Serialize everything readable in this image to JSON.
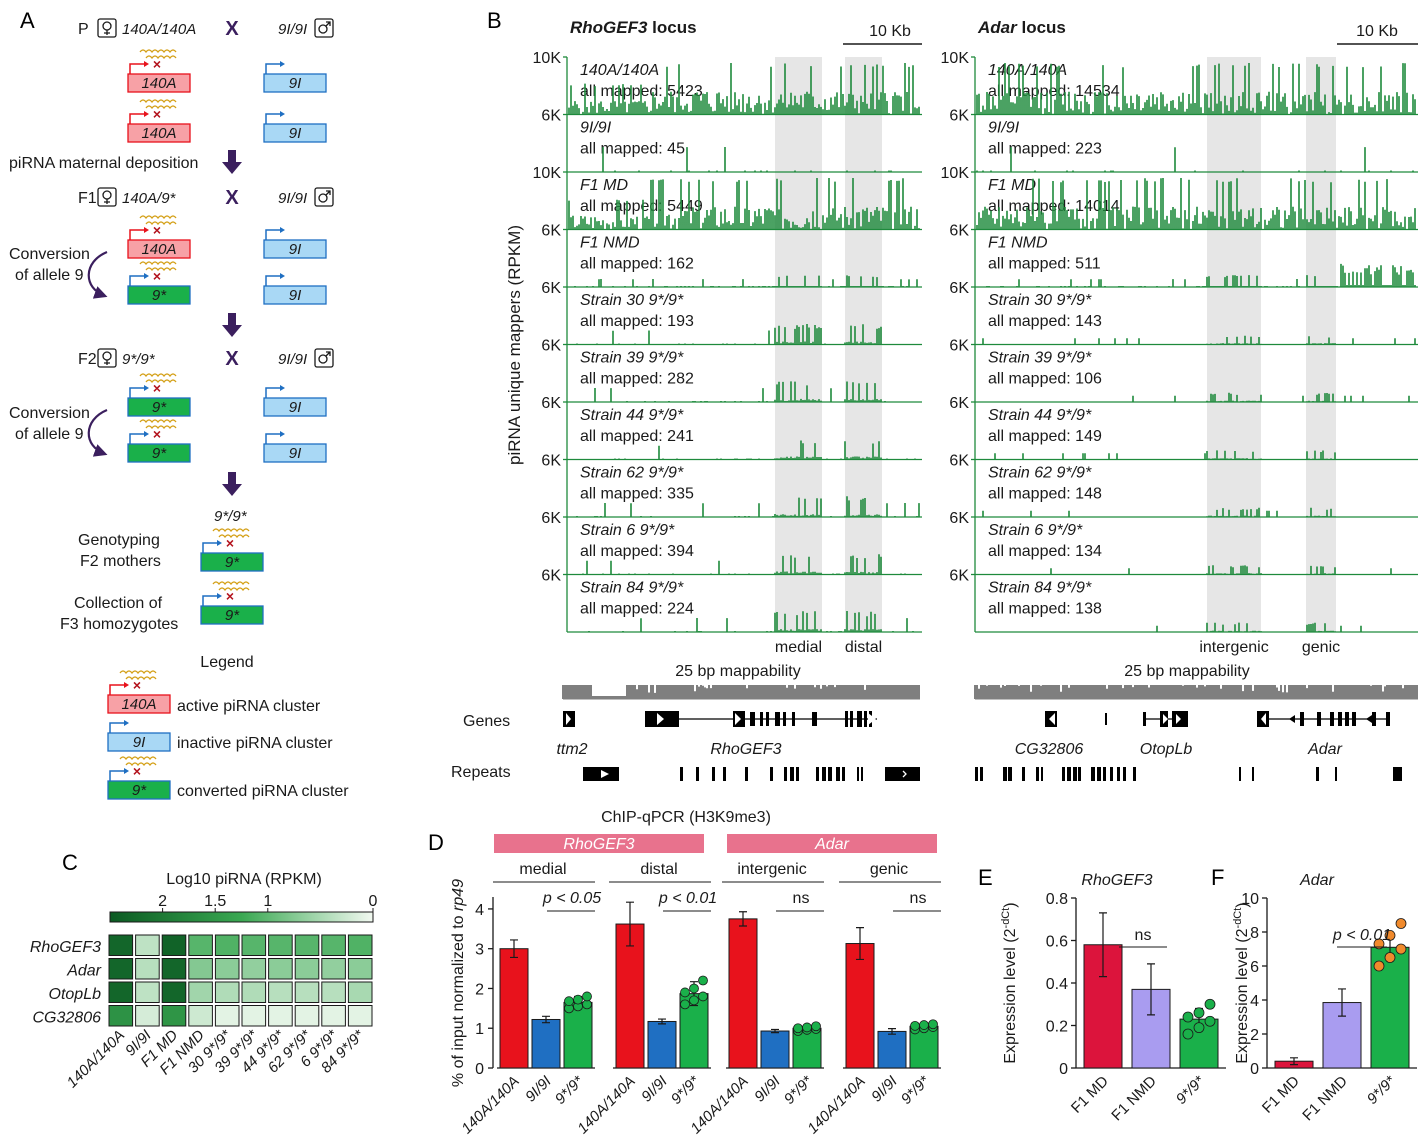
{
  "figure": {
    "panel_labels": [
      "A",
      "B",
      "C",
      "D",
      "E",
      "F"
    ],
    "colors": {
      "track": "#1e8a3c",
      "shade": "#e6e6e6",
      "red": "#e8121c",
      "blue": "#1f6fc2",
      "green": "#1ab04a",
      "crimson": "#dc143c",
      "lavender": "#a99cf0",
      "pink": "#e8728d",
      "purple": "#3b1f5e",
      "gold": "#d4a017"
    }
  },
  "panel_a": {
    "p_row": {
      "gen": "P",
      "female_geno": "140A/140A",
      "cross": "X",
      "male_geno": "9I/9I"
    },
    "f1_row": {
      "gen": "F1",
      "female_geno": "140A/9*",
      "cross": "X",
      "male_geno": "9I/9I"
    },
    "f2_row": {
      "gen": "F2",
      "female_geno": "9*/9*",
      "cross": "X",
      "male_geno": "9I/9I"
    },
    "box_labels": {
      "active": "140A",
      "inactive": "9I",
      "converted": "9*"
    },
    "deposition_text": "piRNA maternal deposition",
    "conversion_line1": "Conversion",
    "conversion_line2": "of allele 9",
    "final_geno": "9*/9*",
    "genotyping_line1": "Genotyping",
    "genotyping_line2": "F2 mothers",
    "collection_line1": "Collection of",
    "collection_line2": "F3 homozygotes",
    "legend_title": "Legend",
    "legend_active": "active piRNA cluster",
    "legend_inactive": "inactive piRNA cluster",
    "legend_converted": "converted piRNA cluster"
  },
  "panel_b": {
    "ylabel": "piRNA unique mappers (RPKM)",
    "scale_label": "10 Kb",
    "loci": [
      {
        "title": "RhoGEF3",
        "title_suffix": "locus",
        "regions": [
          "medial",
          "distal"
        ],
        "genes": [
          "ttm2",
          "RhoGEF3"
        ]
      },
      {
        "title": "Adar",
        "title_suffix": "locus",
        "regions": [
          "intergenic",
          "genic"
        ],
        "genes": [
          "CG32806",
          "OtopLb",
          "Adar"
        ]
      }
    ],
    "tracks": [
      {
        "name": "140A/140A",
        "ymax_label": "10K",
        "mapped_rho": "all mapped: 5423",
        "mapped_adar": "all mapped: 14534"
      },
      {
        "name": "9I/9I",
        "ymax_label": "6K",
        "mapped_rho": "all mapped: 45",
        "mapped_adar": "all mapped: 223"
      },
      {
        "name": "F1 MD",
        "ymax_label": "10K",
        "mapped_rho": "all mapped: 5449",
        "mapped_adar": "all mapped: 14014"
      },
      {
        "name": "F1 NMD",
        "ymax_label": "6K",
        "mapped_rho": "all mapped: 162",
        "mapped_adar": "all mapped: 511"
      },
      {
        "name": "Strain 30 9*/9*",
        "ymax_label": "6K",
        "mapped_rho": "all mapped: 193",
        "mapped_adar": "all mapped: 143"
      },
      {
        "name": "Strain 39 9*/9*",
        "ymax_label": "6K",
        "mapped_rho": "all mapped: 282",
        "mapped_adar": "all mapped: 106"
      },
      {
        "name": "Strain 44 9*/9*",
        "ymax_label": "6K",
        "mapped_rho": "all mapped: 241",
        "mapped_adar": "all mapped: 149"
      },
      {
        "name": "Strain 62 9*/9*",
        "ymax_label": "6K",
        "mapped_rho": "all mapped: 335",
        "mapped_adar": "all mapped: 148"
      },
      {
        "name": "Strain 6 9*/9*",
        "ymax_label": "6K",
        "mapped_rho": "all mapped: 394",
        "mapped_adar": "all mapped: 134"
      },
      {
        "name": "Strain 84 9*/9*",
        "ymax_label": "6K",
        "mapped_rho": "all mapped: 224",
        "mapped_adar": "all mapped: 138"
      }
    ],
    "mappability_label": "25 bp mappability",
    "genes_label": "Genes",
    "repeats_label": "Repeats"
  },
  "chart_data": [
    {
      "type": "heatmap",
      "title": "Log10 piRNA (RPKM)",
      "colorbar_ticks": [
        "2",
        "1.5",
        "1",
        "0"
      ],
      "rows": [
        "RhoGEF3",
        "Adar",
        "OtopLb",
        "CG32806"
      ],
      "columns": [
        "140A/140A",
        "9I/9I",
        "F1 MD",
        "F1 NMD",
        "30 9*/9*",
        "39 9*/9*",
        "44 9*/9*",
        "62 9*/9*",
        "6 9*/9*",
        "84 9*/9*"
      ],
      "values": [
        [
          2.3,
          0.35,
          2.35,
          1.05,
          1.1,
          1.05,
          1.05,
          1.05,
          1.05,
          1.1
        ],
        [
          2.3,
          0.4,
          2.3,
          0.75,
          0.7,
          0.65,
          0.7,
          0.7,
          0.65,
          0.7
        ],
        [
          2.3,
          0.35,
          2.3,
          0.55,
          0.45,
          0.45,
          0.4,
          0.4,
          0.4,
          0.5
        ],
        [
          1.6,
          0.2,
          1.55,
          0.25,
          0.1,
          0.1,
          0.1,
          0.1,
          0.1,
          0.1
        ]
      ],
      "vmin": 0,
      "vmax": 2.5
    },
    {
      "type": "bar",
      "title": "ChIP-qPCR (H3K9me3)",
      "ylabel": "% of input normalized to rp49",
      "ylim": [
        0,
        4.3
      ],
      "yticks": [
        "0",
        "1",
        "2",
        "3",
        "4"
      ],
      "group_headers": [
        "RhoGEF3",
        "Adar"
      ],
      "categories": [
        "140A/140A",
        "9I/9I",
        "9*/9*"
      ],
      "groups": [
        {
          "name": "medial",
          "values": [
            3.0,
            1.22,
            1.65
          ],
          "errors": [
            0.22,
            0.08,
            0.15
          ],
          "sig": "p < 0.05",
          "points": [
            1.5,
            1.55,
            1.6,
            1.68,
            1.72,
            1.8
          ]
        },
        {
          "name": "distal",
          "values": [
            3.62,
            1.17,
            1.87
          ],
          "errors": [
            0.55,
            0.06,
            0.3
          ],
          "sig": "p < 0.01",
          "points": [
            1.6,
            1.7,
            1.8,
            1.9,
            2.0,
            2.2
          ]
        },
        {
          "name": "intergenic",
          "values": [
            3.75,
            0.93,
            1.0
          ],
          "errors": [
            0.18,
            0.04,
            0.06
          ],
          "sig": "ns",
          "points": [
            0.93,
            0.96,
            0.98,
            1.0,
            1.02,
            1.05
          ]
        },
        {
          "name": "genic",
          "values": [
            3.13,
            0.92,
            1.05
          ],
          "errors": [
            0.4,
            0.07,
            0.07
          ],
          "sig": "ns",
          "points": [
            0.97,
            1.0,
            1.03,
            1.06,
            1.08,
            1.1
          ]
        }
      ]
    },
    {
      "type": "bar",
      "title": "RhoGEF3",
      "ylabel": "Expression level (2^-dCt)",
      "ylim": [
        0,
        0.8
      ],
      "yticks": [
        "0",
        "0.2",
        "0.4",
        "0.6",
        "0.8"
      ],
      "categories": [
        "F1 MD",
        "F1 NMD",
        "9*/9*"
      ],
      "values": [
        0.58,
        0.37,
        0.23
      ],
      "errors": [
        0.15,
        0.12,
        0.05
      ],
      "points": [
        0.16,
        0.19,
        0.22,
        0.24,
        0.26,
        0.3
      ],
      "sig": "ns"
    },
    {
      "type": "bar",
      "title": "Adar",
      "ylabel": "Expression level (2^-dCt)",
      "ylim": [
        0,
        10
      ],
      "yticks": [
        "0",
        "2",
        "4",
        "6",
        "8",
        "10"
      ],
      "categories": [
        "F1 MD",
        "F1 NMD",
        "9*/9*"
      ],
      "values": [
        0.4,
        3.85,
        7.1
      ],
      "errors": [
        0.2,
        0.8,
        0.5
      ],
      "points": [
        6.0,
        6.5,
        7.0,
        7.3,
        7.8,
        8.5
      ],
      "sig": "p < 0.01"
    }
  ]
}
